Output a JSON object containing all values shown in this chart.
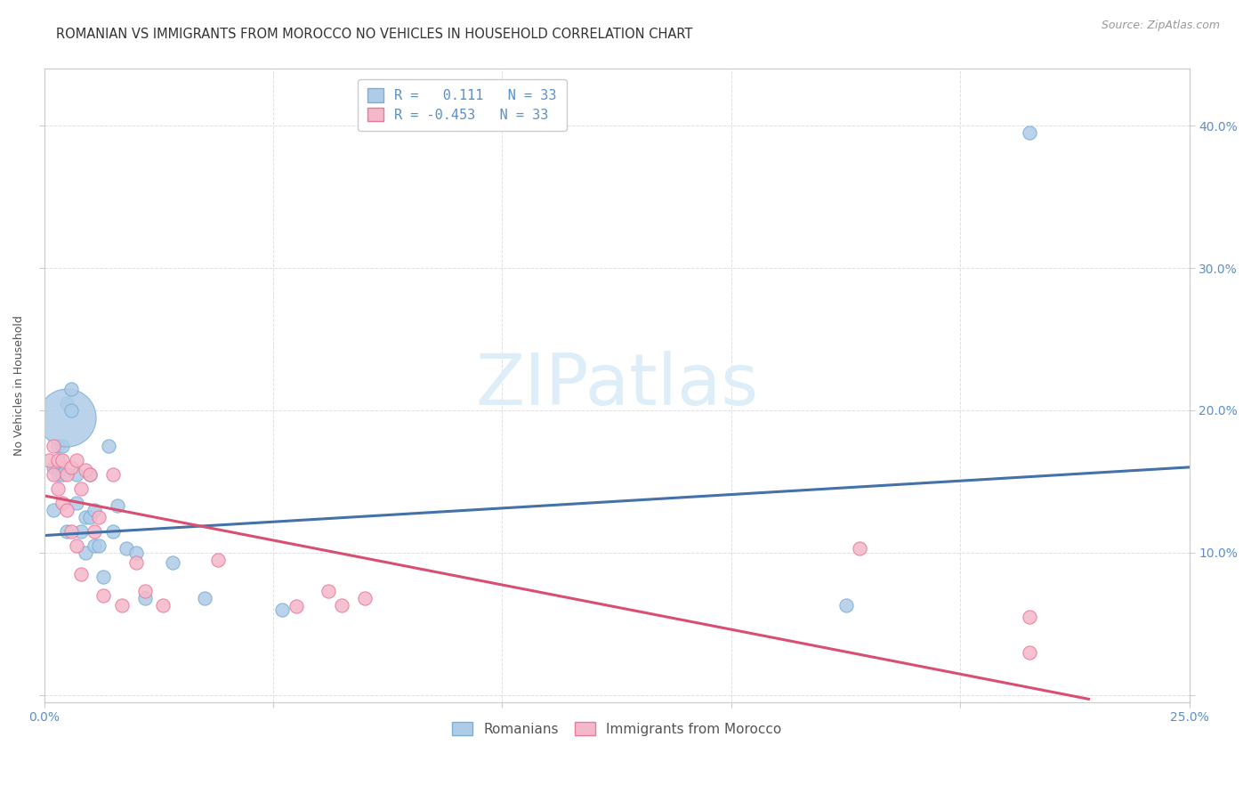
{
  "title": "ROMANIAN VS IMMIGRANTS FROM MOROCCO NO VEHICLES IN HOUSEHOLD CORRELATION CHART",
  "source": "Source: ZipAtlas.com",
  "ylabel": "No Vehicles in Household",
  "xlim": [
    0.0,
    0.25
  ],
  "ylim": [
    -0.005,
    0.44
  ],
  "blue_color": "#7bafd4",
  "pink_color": "#e8799a",
  "blue_fill": "#aecce8",
  "pink_fill": "#f5b8cb",
  "blue_line_color": "#4472a8",
  "pink_line_color": "#d94f72",
  "tick_color": "#5b8fc9",
  "watermark_text": "ZIPatlas",
  "legend_line1": "R =   0.111   N = 33",
  "legend_line2": "R = -0.453   N = 33",
  "romanian_x": [
    0.002,
    0.002,
    0.003,
    0.003,
    0.004,
    0.004,
    0.005,
    0.005,
    0.005,
    0.006,
    0.006,
    0.007,
    0.007,
    0.008,
    0.009,
    0.009,
    0.01,
    0.01,
    0.011,
    0.011,
    0.012,
    0.013,
    0.014,
    0.015,
    0.016,
    0.018,
    0.02,
    0.022,
    0.028,
    0.035,
    0.052,
    0.175,
    0.215
  ],
  "romanian_y": [
    0.16,
    0.13,
    0.175,
    0.155,
    0.175,
    0.155,
    0.205,
    0.195,
    0.115,
    0.215,
    0.2,
    0.155,
    0.135,
    0.115,
    0.125,
    0.1,
    0.155,
    0.125,
    0.13,
    0.105,
    0.105,
    0.083,
    0.175,
    0.115,
    0.133,
    0.103,
    0.1,
    0.068,
    0.093,
    0.068,
    0.06,
    0.063,
    0.395
  ],
  "romanian_size": [
    20,
    20,
    20,
    20,
    20,
    20,
    20,
    20,
    20,
    20,
    20,
    20,
    20,
    20,
    20,
    20,
    20,
    20,
    20,
    20,
    20,
    20,
    20,
    20,
    20,
    20,
    20,
    20,
    20,
    20,
    20,
    20,
    20
  ],
  "romanian_big_idx": 7,
  "romanian_big_size": 2200,
  "moroccan_x": [
    0.001,
    0.002,
    0.002,
    0.003,
    0.003,
    0.004,
    0.004,
    0.005,
    0.005,
    0.006,
    0.006,
    0.007,
    0.007,
    0.008,
    0.008,
    0.009,
    0.01,
    0.011,
    0.012,
    0.013,
    0.015,
    0.017,
    0.02,
    0.022,
    0.026,
    0.038,
    0.055,
    0.062,
    0.065,
    0.07,
    0.178,
    0.215,
    0.215
  ],
  "moroccan_y": [
    0.165,
    0.175,
    0.155,
    0.165,
    0.145,
    0.165,
    0.135,
    0.155,
    0.13,
    0.16,
    0.115,
    0.165,
    0.105,
    0.145,
    0.085,
    0.158,
    0.155,
    0.115,
    0.125,
    0.07,
    0.155,
    0.063,
    0.093,
    0.073,
    0.063,
    0.095,
    0.062,
    0.073,
    0.063,
    0.068,
    0.103,
    0.055,
    0.03
  ],
  "moroccan_size": [
    20,
    20,
    20,
    20,
    20,
    20,
    20,
    20,
    20,
    20,
    20,
    20,
    20,
    20,
    20,
    20,
    20,
    20,
    20,
    20,
    20,
    20,
    20,
    20,
    20,
    20,
    20,
    20,
    20,
    20,
    20,
    20,
    20
  ],
  "blue_trend_x": [
    0.0,
    0.25
  ],
  "blue_trend_y": [
    0.112,
    0.16
  ],
  "pink_trend_x": [
    0.0,
    0.228
  ],
  "pink_trend_y": [
    0.14,
    -0.003
  ],
  "yticks": [
    0.0,
    0.1,
    0.2,
    0.3,
    0.4
  ],
  "xticks": [
    0.0,
    0.05,
    0.1,
    0.15,
    0.2,
    0.25
  ],
  "grid_color": "#e0e0e0",
  "title_fontsize": 10.5,
  "axis_label_fontsize": 9,
  "tick_fontsize": 10,
  "source_fontsize": 9
}
